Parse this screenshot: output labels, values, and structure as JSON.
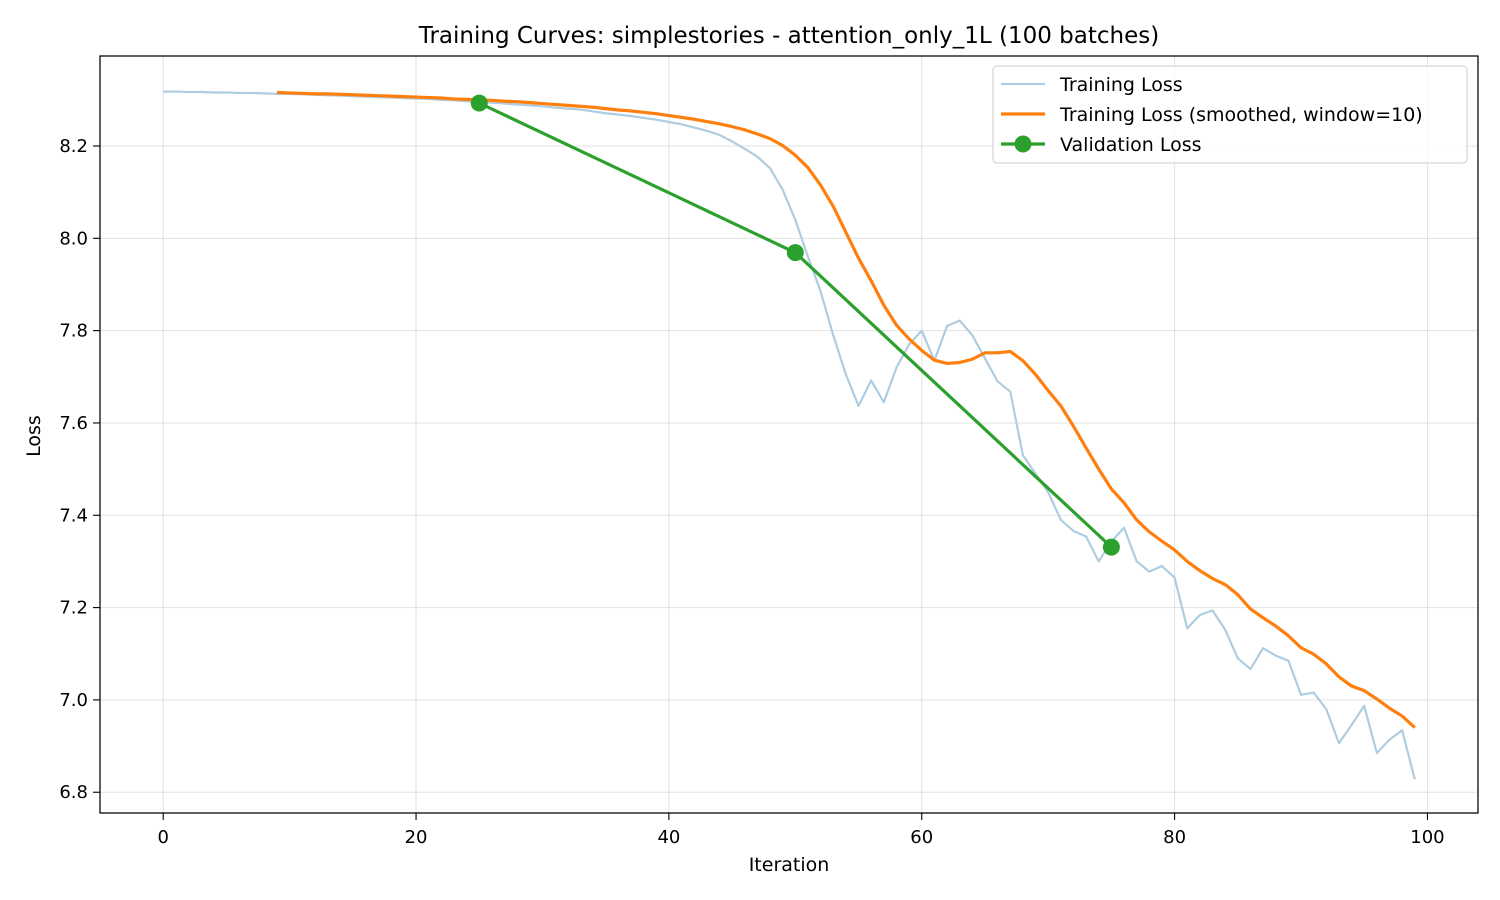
{
  "chart_data": {
    "type": "line",
    "title": "Training Curves: simplestories - attention_only_1L (100 batches)",
    "xlabel": "Iteration",
    "ylabel": "Loss",
    "xlim": [
      -5,
      104
    ],
    "ylim": [
      6.755,
      8.395
    ],
    "xticks": [
      0,
      20,
      40,
      60,
      80,
      100
    ],
    "yticks": [
      6.8,
      7.0,
      7.2,
      7.4,
      7.6,
      7.8,
      8.0,
      8.2
    ],
    "grid": true,
    "legend_position": "top-right",
    "series": [
      {
        "name": "Training Loss",
        "color": "#aecde1",
        "marker": "none",
        "x": [
          0,
          1,
          2,
          3,
          4,
          5,
          6,
          7,
          8,
          9,
          10,
          11,
          12,
          13,
          14,
          15,
          16,
          17,
          18,
          19,
          20,
          21,
          22,
          23,
          24,
          25,
          26,
          27,
          28,
          29,
          30,
          31,
          32,
          33,
          34,
          35,
          36,
          37,
          38,
          39,
          40,
          41,
          42,
          43,
          44,
          45,
          46,
          47,
          48,
          49,
          50,
          51,
          52,
          53,
          54,
          55,
          56,
          57,
          58,
          59,
          60,
          61,
          62,
          63,
          64,
          65,
          66,
          67,
          68,
          69,
          70,
          71,
          72,
          73,
          74,
          75,
          76,
          77,
          78,
          79,
          80,
          81,
          82,
          83,
          84,
          85,
          86,
          87,
          88,
          89,
          90,
          91,
          92,
          93,
          94,
          95,
          96,
          97,
          98,
          99
        ],
        "y": [
          8.318,
          8.318,
          8.317,
          8.317,
          8.316,
          8.316,
          8.315,
          8.315,
          8.314,
          8.313,
          8.313,
          8.312,
          8.311,
          8.31,
          8.309,
          8.308,
          8.307,
          8.306,
          8.305,
          8.304,
          8.303,
          8.302,
          8.3,
          8.299,
          8.297,
          8.295,
          8.294,
          8.292,
          8.29,
          8.288,
          8.286,
          8.283,
          8.281,
          8.279,
          8.275,
          8.271,
          8.268,
          8.265,
          8.261,
          8.257,
          8.252,
          8.247,
          8.24,
          8.233,
          8.224,
          8.21,
          8.194,
          8.177,
          8.152,
          8.105,
          8.04,
          7.96,
          7.885,
          7.79,
          7.705,
          7.637,
          7.692,
          7.645,
          7.72,
          7.77,
          7.8,
          7.735,
          7.81,
          7.822,
          7.79,
          7.74,
          7.69,
          7.668,
          7.53,
          7.49,
          7.45,
          7.39,
          7.366,
          7.354,
          7.3,
          7.343,
          7.373,
          7.3,
          7.278,
          7.29,
          7.265,
          7.155,
          7.184,
          7.194,
          7.152,
          7.09,
          7.067,
          7.112,
          7.096,
          7.085,
          7.011,
          7.016,
          6.98,
          6.906,
          6.946,
          6.987,
          6.885,
          6.914,
          6.934,
          6.828
        ]
      },
      {
        "name": "Training Loss (smoothed, window=10)",
        "color": "#ff7f0e",
        "marker": "none",
        "x": [
          9,
          10,
          11,
          12,
          13,
          14,
          15,
          16,
          17,
          18,
          19,
          20,
          21,
          22,
          23,
          24,
          25,
          26,
          27,
          28,
          29,
          30,
          31,
          32,
          33,
          34,
          35,
          36,
          37,
          38,
          39,
          40,
          41,
          42,
          43,
          44,
          45,
          46,
          47,
          48,
          49,
          50,
          51,
          52,
          53,
          54,
          55,
          56,
          57,
          58,
          59,
          60,
          61,
          62,
          63,
          64,
          65,
          66,
          67,
          68,
          69,
          70,
          71,
          72,
          73,
          74,
          75,
          76,
          77,
          78,
          79,
          80,
          81,
          82,
          83,
          84,
          85,
          86,
          87,
          88,
          89,
          90,
          91,
          92,
          93,
          94,
          95,
          96,
          97,
          98,
          99
        ],
        "y": [
          8.316,
          8.315,
          8.314,
          8.313,
          8.313,
          8.312,
          8.311,
          8.31,
          8.309,
          8.308,
          8.307,
          8.306,
          8.305,
          8.304,
          8.302,
          8.301,
          8.3,
          8.299,
          8.297,
          8.296,
          8.294,
          8.292,
          8.29,
          8.288,
          8.286,
          8.284,
          8.281,
          8.278,
          8.276,
          8.273,
          8.27,
          8.266,
          8.262,
          8.258,
          8.253,
          8.248,
          8.242,
          8.235,
          8.226,
          8.216,
          8.201,
          8.18,
          8.153,
          8.115,
          8.069,
          8.013,
          7.957,
          7.908,
          7.855,
          7.812,
          7.782,
          7.757,
          7.736,
          7.729,
          7.731,
          7.738,
          7.752,
          7.752,
          7.755,
          7.735,
          7.705,
          7.67,
          7.637,
          7.593,
          7.546,
          7.5,
          7.457,
          7.427,
          7.39,
          7.364,
          7.344,
          7.325,
          7.3,
          7.28,
          7.263,
          7.25,
          7.228,
          7.197,
          7.178,
          7.16,
          7.139,
          7.113,
          7.099,
          7.078,
          7.05,
          7.03,
          7.02,
          7.002,
          6.982,
          6.965,
          6.94
        ]
      },
      {
        "name": "Validation Loss",
        "color": "#2ca02c",
        "marker": "circle",
        "x": [
          25,
          50,
          75
        ],
        "y": [
          8.293,
          7.969,
          7.331
        ]
      }
    ]
  }
}
